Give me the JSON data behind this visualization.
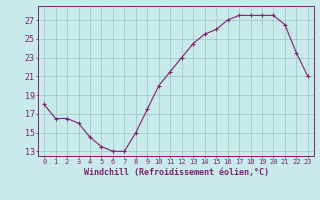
{
  "x": [
    0,
    1,
    2,
    3,
    4,
    5,
    6,
    7,
    8,
    9,
    10,
    11,
    12,
    13,
    14,
    15,
    16,
    17,
    18,
    19,
    20,
    21,
    22,
    23
  ],
  "y": [
    18.0,
    16.5,
    16.5,
    16.0,
    14.5,
    13.5,
    13.0,
    13.0,
    15.0,
    17.5,
    20.0,
    21.5,
    23.0,
    24.5,
    25.5,
    26.0,
    27.0,
    27.5,
    27.5,
    27.5,
    27.5,
    26.5,
    23.5,
    21.0
  ],
  "line_color": "#7f2070",
  "marker": "+",
  "marker_size": 3,
  "bg_color": "#c8eaea",
  "grid_color": "#a0cccc",
  "axis_color": "#7f2070",
  "tick_color": "#7f2070",
  "xlabel": "Windchill (Refroidissement éolien,°C)",
  "xlabel_fontsize": 6.0,
  "ytick_fontsize": 6.0,
  "xtick_fontsize": 5.0,
  "yticks": [
    13,
    15,
    17,
    19,
    21,
    23,
    25,
    27
  ],
  "xticks": [
    0,
    1,
    2,
    3,
    4,
    5,
    6,
    7,
    8,
    9,
    10,
    11,
    12,
    13,
    14,
    15,
    16,
    17,
    18,
    19,
    20,
    21,
    22,
    23
  ],
  "ylim": [
    12.5,
    28.5
  ],
  "xlim": [
    -0.5,
    23.5
  ]
}
